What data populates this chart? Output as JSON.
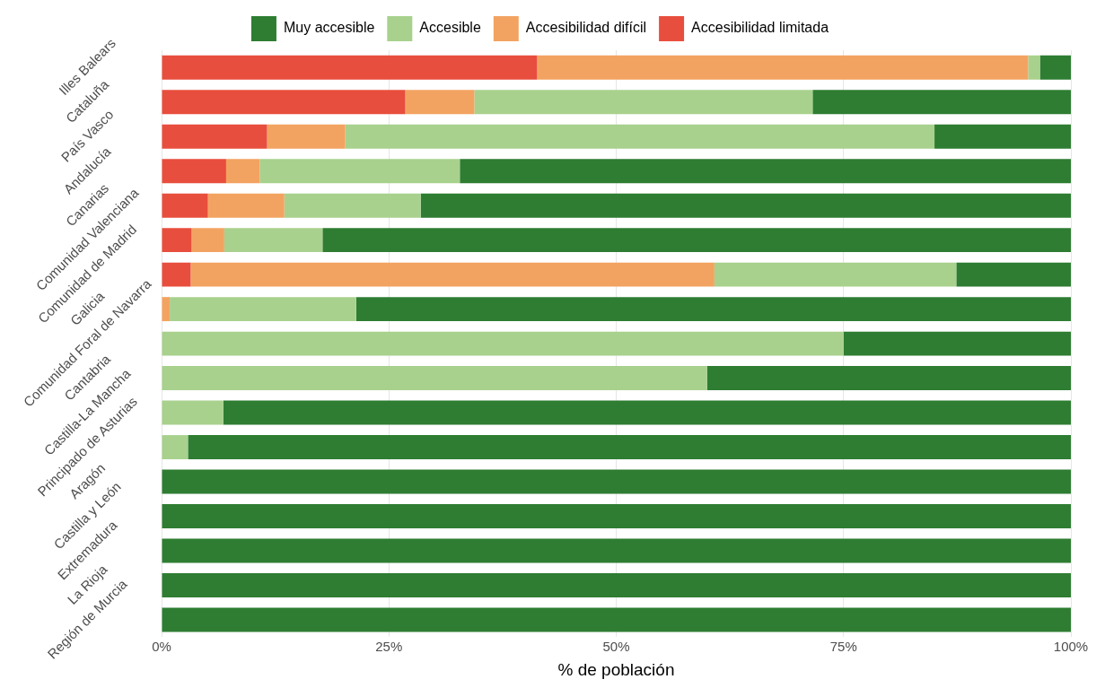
{
  "chart_data": {
    "type": "bar",
    "orientation": "horizontal",
    "stacked": true,
    "xlabel": "% de población",
    "categories": [
      "Illes Balears",
      "Cataluña",
      "País Vasco",
      "Andalucía",
      "Canarias",
      "Comunidad Valenciana",
      "Comunidad de Madrid",
      "Galicia",
      "Comunidad Foral de Navarra",
      "Cantabria",
      "Castilla-La Mancha",
      "Principado de Asturias",
      "Aragón",
      "Castilla y León",
      "Extremadura",
      "La Rioja",
      "Región de Murcia"
    ],
    "series": [
      {
        "name": "Accesibilidad limitada",
        "color": "#e84e3d",
        "values": [
          41.3,
          26.8,
          11.6,
          7.1,
          5.1,
          3.3,
          3.2,
          0,
          0,
          0,
          0,
          0,
          0,
          0,
          0,
          0,
          0
        ]
      },
      {
        "name": "Accesibilidad difícil",
        "color": "#f3a361",
        "values": [
          54.0,
          7.6,
          8.6,
          3.7,
          8.4,
          3.6,
          57.6,
          0.9,
          0,
          0,
          0,
          0,
          0,
          0,
          0,
          0,
          0
        ]
      },
      {
        "name": "Accesible",
        "color": "#a8d18d",
        "values": [
          1.3,
          37.2,
          64.8,
          22.0,
          15.0,
          10.8,
          26.6,
          20.5,
          75.0,
          60.0,
          6.8,
          2.9,
          0,
          0,
          0,
          0,
          0
        ]
      },
      {
        "name": "Muy accesible",
        "color": "#2e7d32",
        "values": [
          3.4,
          28.4,
          15.0,
          67.2,
          71.5,
          82.3,
          12.6,
          78.6,
          25.0,
          40.0,
          93.2,
          97.1,
          100,
          100,
          100,
          100,
          100
        ]
      }
    ],
    "xlim": [
      0,
      100
    ],
    "xticks": [
      {
        "value": 0,
        "label": "0%"
      },
      {
        "value": 25,
        "label": "25%"
      },
      {
        "value": 50,
        "label": "50%"
      },
      {
        "value": 75,
        "label": "75%"
      },
      {
        "value": 100,
        "label": "100%"
      }
    ],
    "grid": "x",
    "legend": "top"
  }
}
